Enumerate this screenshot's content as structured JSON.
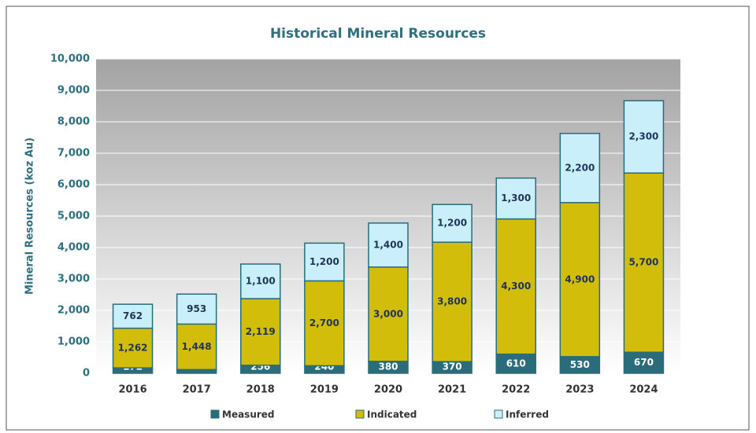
{
  "chart_data": {
    "type": "stacked_bar",
    "title": "Historical Mineral Resources",
    "y_label": "Mineral Resources (koz Au)",
    "categories": [
      "2016",
      "2017",
      "2018",
      "2019",
      "2020",
      "2021",
      "2022",
      "2023",
      "2024"
    ],
    "series": [
      {
        "name": "Measured",
        "color": "#2b6c7b",
        "label_color": "#ffffff",
        "values": [
          172,
          118,
          256,
          240,
          380,
          370,
          610,
          530,
          670
        ]
      },
      {
        "name": "Indicated",
        "color": "#d3bd0b",
        "label_color": "#1f3458",
        "values": [
          1262,
          1448,
          2119,
          2700,
          3000,
          3800,
          4300,
          4900,
          5700
        ],
        "value_labels": [
          "1,262",
          "1,448",
          "2,119",
          "2,700",
          "3,000",
          "3,800",
          "4,300",
          "4,900",
          "5,700"
        ]
      },
      {
        "name": "Inferred",
        "color": "#c9effb",
        "label_color": "#1f3458",
        "values": [
          762,
          953,
          1100,
          1200,
          1400,
          1200,
          1300,
          2200,
          2300
        ],
        "value_labels": [
          "762",
          "953",
          "1,100",
          "1,200",
          "1,400",
          "1,200",
          "1,300",
          "2,200",
          "2,300"
        ]
      }
    ],
    "ylim": [
      0,
      10000
    ],
    "yticks": [
      0,
      {
        "value": 1000,
        "label": "1,000"
      },
      {
        "value": 2000,
        "label": "2,000"
      },
      {
        "value": 3000,
        "label": "3,000"
      },
      {
        "value": 4000,
        "label": "4,000"
      },
      {
        "value": 5000,
        "label": "5,000"
      },
      {
        "value": 6000,
        "label": "6,000"
      },
      {
        "value": 7000,
        "label": "7,000"
      },
      {
        "value": 8000,
        "label": "8,000"
      },
      {
        "value": 9000,
        "label": "9,000"
      },
      {
        "value": 10000,
        "label": "10,000"
      }
    ],
    "grid": true,
    "legend": "bottom"
  }
}
